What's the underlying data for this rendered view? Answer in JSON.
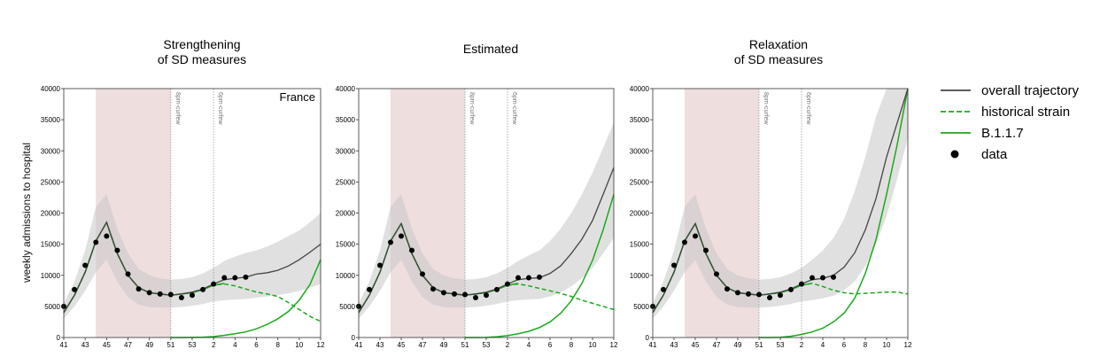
{
  "ylabel": "weekly admissions to hospital",
  "colors": {
    "overall": "#444444",
    "historical": "#1aaa1a",
    "b117": "#1aaa1a",
    "data": "#000000",
    "band": "#c9c6c9",
    "shade": "#e8d3d3"
  },
  "legend": [
    {
      "label": "overall trajectory",
      "style": "overall"
    },
    {
      "label": "historical strain",
      "style": "historical"
    },
    {
      "label": "B.1.1.7",
      "style": "b117"
    },
    {
      "label": "data",
      "style": "data"
    }
  ],
  "chart_data": [
    {
      "type": "line",
      "title": [
        "Strengthening",
        "of SD measures"
      ],
      "annotation": "France",
      "xticks": [
        "41",
        "43",
        "45",
        "47",
        "49",
        "51",
        "53",
        "2",
        "4",
        "6",
        "8",
        "10",
        "12"
      ],
      "ylim": [
        0,
        40000
      ],
      "yticks": [
        0,
        5000,
        10000,
        15000,
        20000,
        25000,
        30000,
        35000,
        40000
      ],
      "shaded_weeks": [
        44,
        51
      ],
      "events": [
        {
          "week": 51,
          "label": "8pm-curfew"
        },
        {
          "week": 55,
          "label": "6pm-curfew"
        }
      ],
      "weeks": [
        41,
        42,
        43,
        44,
        45,
        46,
        47,
        48,
        49,
        50,
        51,
        52,
        53,
        54,
        55,
        56,
        57,
        58,
        59,
        60,
        61,
        62,
        63,
        64,
        65
      ],
      "series": [
        {
          "key": "overall",
          "name": "overall trajectory",
          "values": [
            4000,
            6800,
            10500,
            15500,
            18500,
            13500,
            10000,
            8000,
            7200,
            7000,
            6800,
            7000,
            7300,
            7800,
            8600,
            9300,
            9500,
            9700,
            10200,
            10400,
            10800,
            11500,
            12500,
            13700,
            15000
          ],
          "lower": [
            3000,
            5000,
            7500,
            10500,
            12500,
            9000,
            6500,
            5300,
            4900,
            4800,
            4800,
            4900,
            5100,
            5400,
            5800,
            6000,
            6100,
            6200,
            6400,
            6600,
            6800,
            7100,
            7500,
            8000,
            8600
          ],
          "upper": [
            5500,
            9000,
            14000,
            21000,
            23000,
            17500,
            13500,
            11000,
            10000,
            9500,
            9300,
            9400,
            9700,
            10300,
            11200,
            12300,
            13000,
            13600,
            14000,
            14600,
            15400,
            16300,
            17200,
            18500,
            20000
          ]
        },
        {
          "key": "historical",
          "name": "historical strain",
          "values": [
            4000,
            6800,
            10500,
            15500,
            18500,
            13500,
            10000,
            8000,
            7200,
            7000,
            6800,
            7000,
            7200,
            7700,
            8400,
            8600,
            8300,
            7800,
            7300,
            7000,
            6600,
            5600,
            4500,
            3400,
            2600
          ]
        },
        {
          "key": "b117",
          "name": "B.1.1.7",
          "values": [
            4000,
            6800,
            10500,
            15500,
            18500,
            13500,
            10000,
            8000,
            7200,
            7000,
            6800,
            7000,
            7200,
            7700,
            8400,
            8700,
            null,
            null,
            null,
            null,
            null,
            null,
            null,
            null,
            null
          ],
          "rise_weeks": [
            51,
            52,
            53,
            54,
            55,
            56,
            57,
            58,
            59,
            60,
            61,
            62,
            63,
            64,
            65
          ],
          "rise": [
            0,
            0,
            10,
            50,
            150,
            350,
            600,
            900,
            1400,
            2100,
            3000,
            4200,
            6000,
            8500,
            12500
          ]
        },
        {
          "key": "data",
          "name": "data",
          "weeks": [
            41,
            42,
            43,
            44,
            45,
            46,
            47,
            48,
            49,
            50,
            51,
            52,
            53,
            54,
            55,
            56,
            57,
            58
          ],
          "values": [
            5000,
            7700,
            11600,
            15300,
            16300,
            14000,
            10200,
            7800,
            7200,
            7000,
            6900,
            6400,
            6800,
            7700,
            8600,
            9600,
            9600,
            9700
          ]
        }
      ]
    },
    {
      "type": "line",
      "title": [
        "Estimated"
      ],
      "annotation": "",
      "xticks": [
        "41",
        "43",
        "45",
        "47",
        "49",
        "51",
        "53",
        "2",
        "4",
        "6",
        "8",
        "10",
        "12"
      ],
      "ylim": [
        0,
        40000
      ],
      "yticks": [
        0,
        5000,
        10000,
        15000,
        20000,
        25000,
        30000,
        35000,
        40000
      ],
      "shaded_weeks": [
        44,
        51
      ],
      "events": [
        {
          "week": 51,
          "label": "8pm-curfew"
        },
        {
          "week": 55,
          "label": "6pm-curfew"
        }
      ],
      "weeks": [
        41,
        42,
        43,
        44,
        45,
        46,
        47,
        48,
        49,
        50,
        51,
        52,
        53,
        54,
        55,
        56,
        57,
        58,
        59,
        60,
        61,
        62,
        63,
        64,
        65
      ],
      "series": [
        {
          "key": "overall",
          "name": "overall trajectory",
          "values": [
            4000,
            6800,
            10500,
            15500,
            18300,
            13500,
            10000,
            8000,
            7200,
            7000,
            6800,
            7000,
            7300,
            7800,
            8600,
            9300,
            9500,
            9600,
            10300,
            11500,
            13500,
            15800,
            18800,
            23000,
            27300
          ],
          "lower": [
            3000,
            5000,
            7500,
            10500,
            12500,
            9000,
            6500,
            5300,
            4900,
            4800,
            4800,
            4900,
            5100,
            5400,
            5800,
            6000,
            6100,
            6200,
            6600,
            7200,
            8200,
            9500,
            11200,
            13500,
            16000
          ],
          "upper": [
            5500,
            9000,
            14000,
            21000,
            23000,
            17500,
            13500,
            11000,
            10000,
            9500,
            9300,
            9400,
            9700,
            10300,
            11200,
            12300,
            13200,
            14000,
            15500,
            17500,
            20000,
            23000,
            26500,
            30500,
            34500
          ]
        },
        {
          "key": "historical",
          "name": "historical strain",
          "values": [
            4000,
            6800,
            10500,
            15500,
            18300,
            13500,
            10000,
            8000,
            7200,
            7000,
            6800,
            7000,
            7200,
            7700,
            8400,
            8600,
            8300,
            7900,
            7500,
            7100,
            6600,
            6000,
            5500,
            5000,
            4500
          ]
        },
        {
          "key": "b117",
          "name": "B.1.1.7",
          "values": [
            4000,
            6800,
            10500,
            15500,
            18300,
            13500,
            10000,
            8000,
            7200,
            7000,
            6800,
            7000,
            7200,
            7700,
            8400,
            8700,
            null,
            null,
            null,
            null,
            null,
            null,
            null,
            null,
            null
          ],
          "rise_weeks": [
            51,
            52,
            53,
            54,
            55,
            56,
            57,
            58,
            59,
            60,
            61,
            62,
            63,
            64,
            65
          ],
          "rise": [
            0,
            0,
            20,
            120,
            300,
            600,
            1000,
            1600,
            2500,
            3900,
            5900,
            8700,
            12400,
            17300,
            23000
          ]
        },
        {
          "key": "data",
          "name": "data",
          "weeks": [
            41,
            42,
            43,
            44,
            45,
            46,
            47,
            48,
            49,
            50,
            51,
            52,
            53,
            54,
            55,
            56,
            57,
            58
          ],
          "values": [
            5000,
            7700,
            11600,
            15300,
            16300,
            14000,
            10200,
            7800,
            7200,
            7000,
            6900,
            6400,
            6800,
            7700,
            8600,
            9600,
            9600,
            9700
          ]
        }
      ]
    },
    {
      "type": "line",
      "title": [
        "Relaxation",
        "of SD measures"
      ],
      "annotation": "",
      "xticks": [
        "41",
        "43",
        "45",
        "47",
        "49",
        "51",
        "53",
        "2",
        "4",
        "6",
        "8",
        "10",
        "12"
      ],
      "ylim": [
        0,
        40000
      ],
      "yticks": [
        0,
        5000,
        10000,
        15000,
        20000,
        25000,
        30000,
        35000,
        40000
      ],
      "shaded_weeks": [
        44,
        51
      ],
      "events": [
        {
          "week": 51,
          "label": "8pm-curfew"
        },
        {
          "week": 55,
          "label": "6pm-curfew"
        }
      ],
      "weeks": [
        41,
        42,
        43,
        44,
        45,
        46,
        47,
        48,
        49,
        50,
        51,
        52,
        53,
        54,
        55,
        56,
        57,
        58,
        59,
        60,
        61,
        62,
        63,
        64,
        65
      ],
      "series": [
        {
          "key": "overall",
          "name": "overall trajectory",
          "values": [
            4000,
            6800,
            10500,
            15500,
            18300,
            13500,
            10000,
            8000,
            7200,
            7000,
            6800,
            7000,
            7300,
            7800,
            8600,
            9300,
            9500,
            10000,
            11300,
            13600,
            17300,
            22300,
            29000,
            34500,
            40000
          ],
          "lower": [
            3000,
            5000,
            7500,
            10500,
            12500,
            9000,
            6500,
            5300,
            4900,
            4800,
            4800,
            4900,
            5100,
            5400,
            5800,
            6000,
            6300,
            6700,
            7600,
            9000,
            11500,
            15000,
            19500,
            25500,
            32000
          ],
          "upper": [
            5500,
            9000,
            14000,
            21000,
            23000,
            17500,
            13500,
            11000,
            10000,
            9500,
            9300,
            9400,
            9700,
            10300,
            11200,
            12500,
            14000,
            16000,
            19000,
            23500,
            29000,
            35500,
            40000,
            40000,
            40000
          ]
        },
        {
          "key": "historical",
          "name": "historical strain",
          "values": [
            4000,
            6800,
            10500,
            15500,
            18300,
            13500,
            10000,
            8000,
            7200,
            7000,
            6800,
            7000,
            7200,
            7700,
            8400,
            8700,
            8200,
            7600,
            7200,
            7000,
            7100,
            7200,
            7300,
            7300,
            7000
          ]
        },
        {
          "key": "b117",
          "name": "B.1.1.7",
          "values": [
            4000,
            6800,
            10500,
            15500,
            18300,
            13500,
            10000,
            8000,
            7200,
            7000,
            6800,
            7000,
            7200,
            7700,
            8400,
            8700,
            null,
            null,
            null,
            null,
            null,
            null,
            null,
            null,
            null
          ],
          "rise_weeks": [
            51,
            52,
            53,
            54,
            55,
            56,
            57,
            58,
            59,
            60,
            61,
            62,
            63,
            64,
            65
          ],
          "rise": [
            0,
            0,
            30,
            200,
            500,
            900,
            1500,
            2500,
            3900,
            6300,
            10300,
            15700,
            23000,
            31000,
            40000
          ]
        },
        {
          "key": "data",
          "name": "data",
          "weeks": [
            41,
            42,
            43,
            44,
            45,
            46,
            47,
            48,
            49,
            50,
            51,
            52,
            53,
            54,
            55,
            56,
            57,
            58
          ],
          "values": [
            5000,
            7700,
            11600,
            15300,
            16300,
            14000,
            10200,
            7800,
            7200,
            7000,
            6900,
            6400,
            6800,
            7700,
            8600,
            9600,
            9600,
            9700
          ]
        }
      ]
    }
  ]
}
